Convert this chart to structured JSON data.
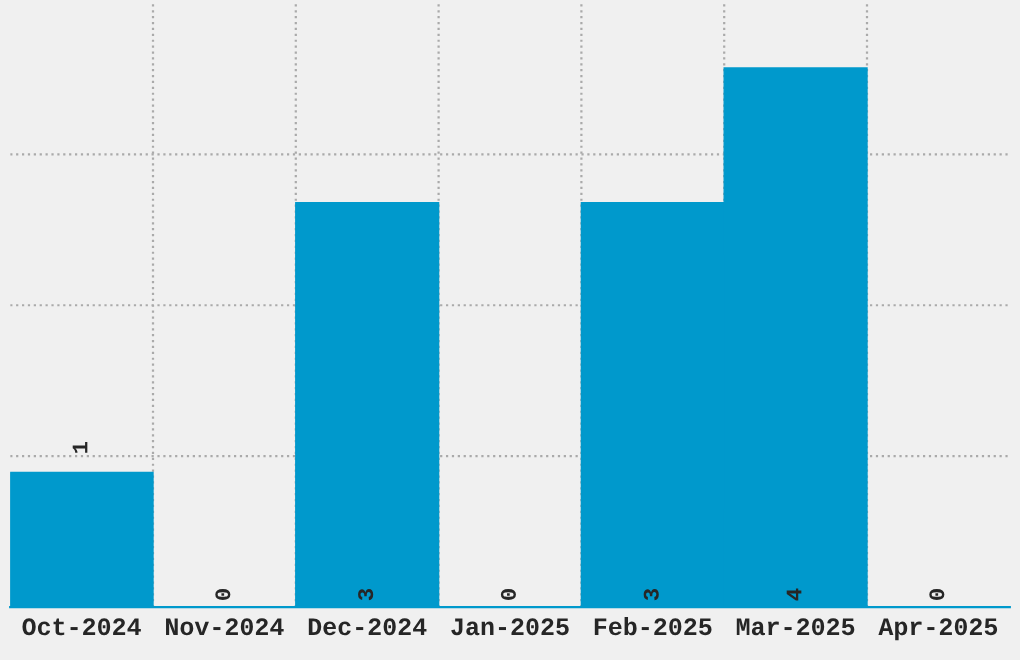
{
  "chart_data": {
    "type": "bar",
    "categories": [
      "Oct-2024",
      "Nov-2024",
      "Dec-2024",
      "Jan-2025",
      "Feb-2025",
      "Mar-2025",
      "Apr-2025"
    ],
    "values": [
      1,
      0,
      3,
      0,
      3,
      4,
      0
    ],
    "color": "#0099cc",
    "ylim": [
      0,
      4.48
    ],
    "yticks": [
      {
        "value": 1.12,
        "label": null
      },
      {
        "value": 2.24,
        "label": null
      },
      {
        "value": 3.36,
        "label": null
      }
    ],
    "tick_labels": "x",
    "data_labels": true,
    "grid": true
  }
}
